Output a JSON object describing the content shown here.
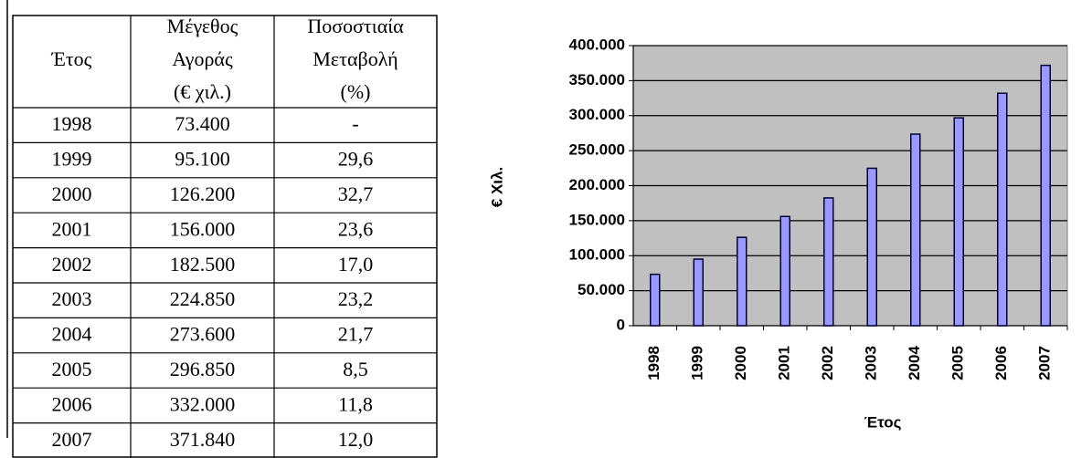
{
  "table": {
    "header": [
      [
        "Έτος"
      ],
      [
        "Μέγεθος",
        "Αγοράς",
        "(€ χιλ.)"
      ],
      [
        "Ποσοστιαία",
        "Μεταβολή",
        "(%)"
      ]
    ],
    "rows": [
      [
        "1998",
        "73.400",
        "-"
      ],
      [
        "1999",
        "95.100",
        "29,6"
      ],
      [
        "2000",
        "126.200",
        "32,7"
      ],
      [
        "2001",
        "156.000",
        "23,6"
      ],
      [
        "2002",
        "182.500",
        "17,0"
      ],
      [
        "2003",
        "224.850",
        "23,2"
      ],
      [
        "2004",
        "273.600",
        "21,7"
      ],
      [
        "2005",
        "296.850",
        "8,5"
      ],
      [
        "2006",
        "332.000",
        "11,8"
      ],
      [
        "2007",
        "371.840",
        "12,0"
      ]
    ]
  },
  "chart_data": {
    "type": "bar",
    "xlabel": "Έτος",
    "ylabel": "€ Χιλ.",
    "categories": [
      "1998",
      "1999",
      "2000",
      "2001",
      "2002",
      "2003",
      "2004",
      "2005",
      "2006",
      "2007"
    ],
    "values": [
      73400,
      95100,
      126200,
      156000,
      182500,
      224850,
      273600,
      296850,
      332000,
      371840
    ],
    "color": "#9999ff",
    "ylim": [
      0,
      400000
    ],
    "yticks": [
      0,
      {
        "value": 50000,
        "label": "50.000"
      },
      {
        "value": 100000,
        "label": "100.000"
      },
      {
        "value": 150000,
        "label": "150.000"
      },
      {
        "value": 200000,
        "label": "200.000"
      },
      {
        "value": 250000,
        "label": "250.000"
      },
      {
        "value": 300000,
        "label": "300.000"
      },
      {
        "value": 350000,
        "label": "350.000"
      },
      {
        "value": 400000,
        "label": "400.000"
      }
    ],
    "grid": true
  }
}
